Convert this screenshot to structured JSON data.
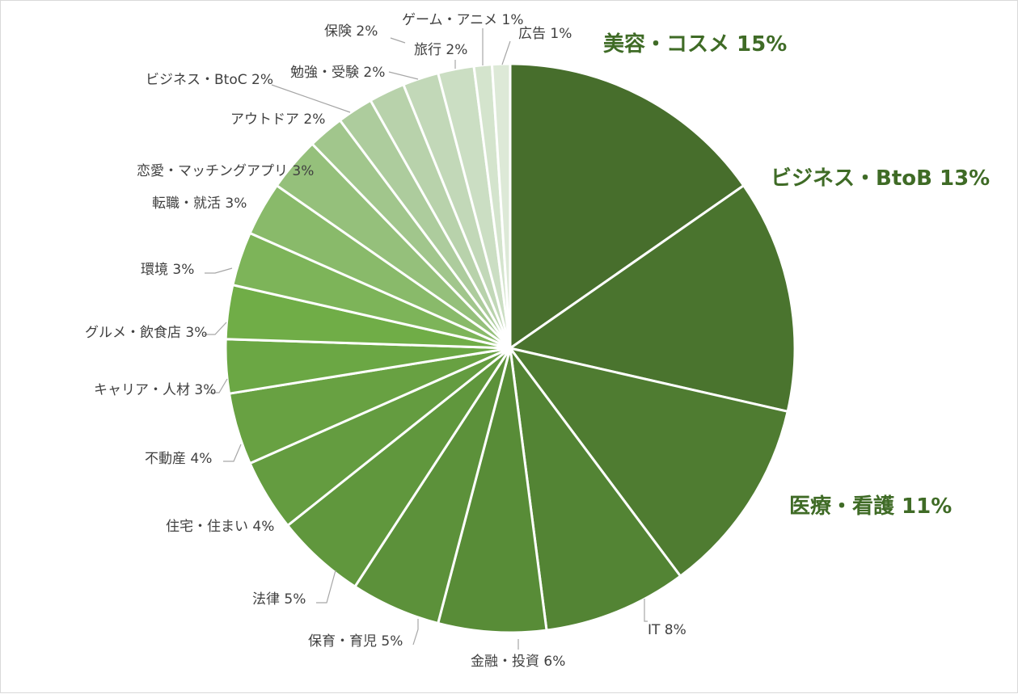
{
  "chart_data": {
    "type": "pie",
    "slices": [
      {
        "label": "美容・コスメ",
        "pct_label": "15%",
        "value": 15,
        "color": "#476e2c",
        "big": true,
        "text_color": "#3f6b26"
      },
      {
        "label": "ビジネス・BtoB",
        "pct_label": "13%",
        "value": 13,
        "color": "#4a742e",
        "big": true,
        "text_color": "#3f6b26"
      },
      {
        "label": "医療・看護",
        "pct_label": "11%",
        "value": 11,
        "color": "#4f7c31",
        "big": true,
        "text_color": "#3f6b26"
      },
      {
        "label": "IT",
        "pct_label": "8%",
        "value": 8,
        "color": "#538434",
        "big": false
      },
      {
        "label": "金融・投資",
        "pct_label": "6%",
        "value": 6,
        "color": "#588c37",
        "big": false
      },
      {
        "label": "保育・育児",
        "pct_label": "5%",
        "value": 5,
        "color": "#5c913a",
        "big": false
      },
      {
        "label": "法律",
        "pct_label": "5%",
        "value": 5,
        "color": "#60973d",
        "big": false
      },
      {
        "label": "住宅・住まい",
        "pct_label": "4%",
        "value": 4,
        "color": "#649c40",
        "big": false
      },
      {
        "label": "不動産",
        "pct_label": "4%",
        "value": 4,
        "color": "#68a142",
        "big": false
      },
      {
        "label": "キャリア・人材",
        "pct_label": "3%",
        "value": 3,
        "color": "#6ba744",
        "big": false
      },
      {
        "label": "グルメ・飲食店",
        "pct_label": "3%",
        "value": 3,
        "color": "#70ad47",
        "big": false
      },
      {
        "label": "環境",
        "pct_label": "3%",
        "value": 3,
        "color": "#7db459",
        "big": false
      },
      {
        "label": "転職・就活",
        "pct_label": "3%",
        "value": 3,
        "color": "#89ba6a",
        "big": false
      },
      {
        "label": "恋愛・マッチングアプリ",
        "pct_label": "3%",
        "value": 3,
        "color": "#95c07b",
        "big": false
      },
      {
        "label": "アウトドア",
        "pct_label": "2%",
        "value": 2,
        "color": "#a1c68c",
        "big": false
      },
      {
        "label": "ビジネス・BtoC",
        "pct_label": "2%",
        "value": 2,
        "color": "#adcc9d",
        "big": false
      },
      {
        "label": "勉強・受験",
        "pct_label": "2%",
        "value": 2,
        "color": "#b8d2ab",
        "big": false
      },
      {
        "label": "保険",
        "pct_label": "2%",
        "value": 2,
        "color": "#c2d8b8",
        "big": false
      },
      {
        "label": "旅行",
        "pct_label": "2%",
        "value": 2,
        "color": "#cbdec3",
        "big": false
      },
      {
        "label": "ゲーム・アニメ",
        "pct_label": "1%",
        "value": 1,
        "color": "#d4e4cd",
        "big": false
      },
      {
        "label": "広告",
        "pct_label": "1%",
        "value": 1,
        "color": "#dde9d7",
        "big": false
      }
    ],
    "legend": "none"
  }
}
